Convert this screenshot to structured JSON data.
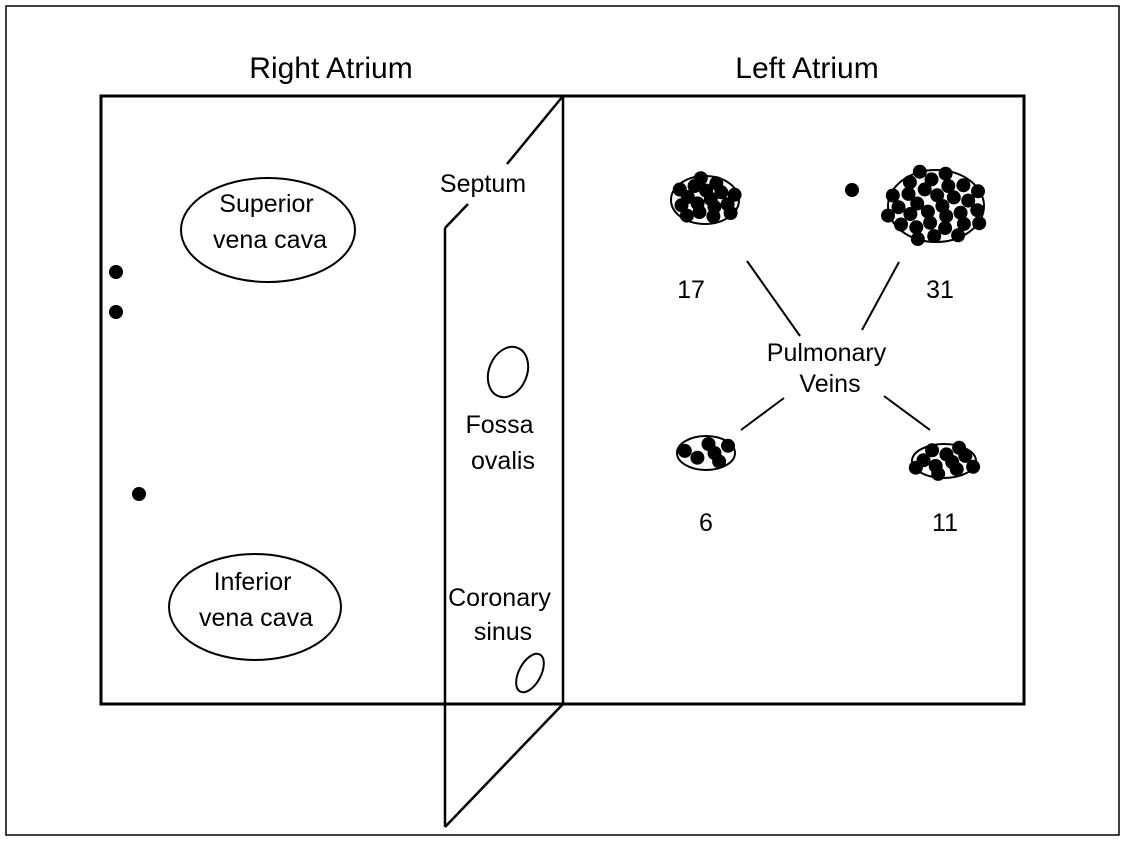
{
  "headings": {
    "right_atrium": "Right Atrium",
    "left_atrium": "Left Atrium"
  },
  "structures": {
    "superior_vena_cava": [
      "Superior",
      "vena cava"
    ],
    "inferior_vena_cava": [
      "Inferior",
      "vena cava"
    ],
    "septum": "Septum",
    "fossa_ovalis": [
      "Fossa",
      "ovalis"
    ],
    "coronary_sinus": [
      "Coronary",
      "sinus"
    ],
    "pulmonary_veins": [
      "Pulmonary",
      "Veins"
    ]
  },
  "pulmonary_vein_counts": {
    "left_superior": "17",
    "right_superior": "31",
    "left_inferior": "6",
    "right_inferior": "11"
  },
  "dot_counts": {
    "right_atrium_free_wall": 3,
    "left_atrium_isolated": 1
  },
  "colors": {
    "ink": "#000000",
    "background": "#ffffff"
  }
}
